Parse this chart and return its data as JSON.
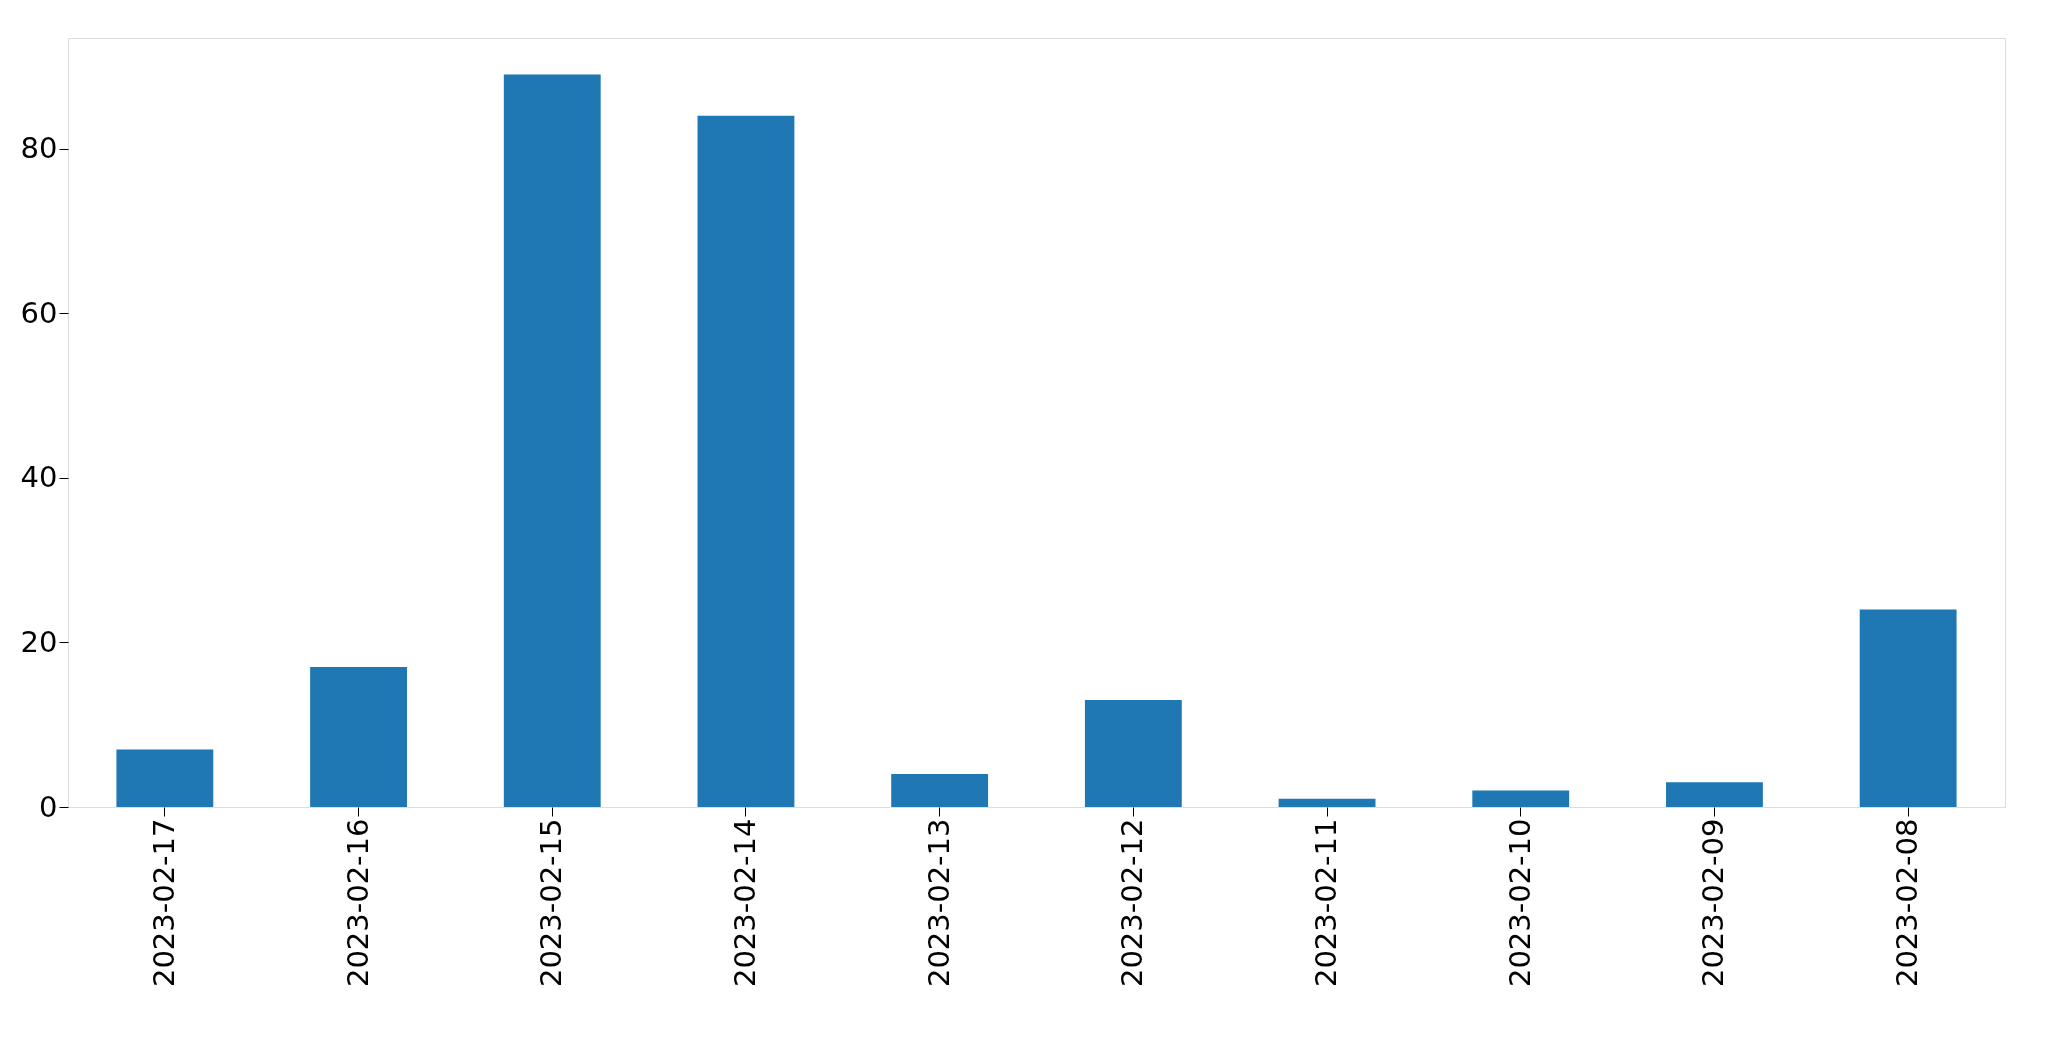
{
  "chart_data": {
    "type": "bar",
    "categories": [
      "2023-02-17",
      "2023-02-16",
      "2023-02-15",
      "2023-02-14",
      "2023-02-13",
      "2023-02-12",
      "2023-02-11",
      "2023-02-10",
      "2023-02-09",
      "2023-02-08"
    ],
    "values": [
      7,
      17,
      89,
      84,
      4,
      13,
      1,
      2,
      3,
      24
    ],
    "color": "#1f77b4",
    "ylim": [
      0,
      93.45
    ],
    "yticks": [
      0,
      20,
      40,
      60,
      80
    ]
  }
}
